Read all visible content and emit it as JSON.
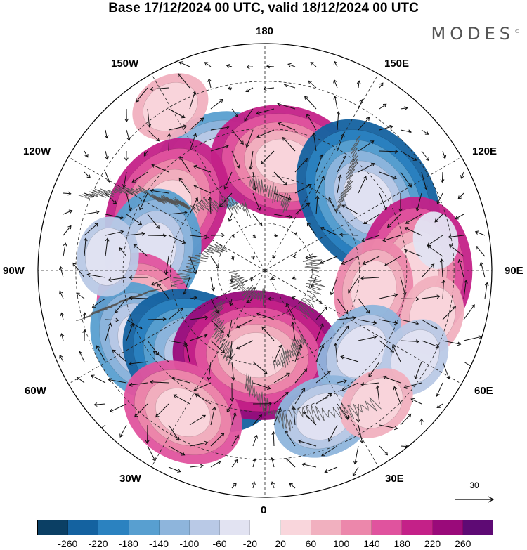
{
  "title": "Base 17/12/2024 00 UTC, valid 18/12/2024 00 UTC",
  "brand": {
    "name": "MODES",
    "mark": "©"
  },
  "lon_labels": {
    "n180": "180",
    "s0": "0",
    "w90": "90W",
    "e90": "90E",
    "w150": "150W",
    "e150": "150E",
    "w120": "120W",
    "e120": "120E",
    "w60": "60W",
    "e60": "60E",
    "w30": "30W",
    "e30": "30E"
  },
  "reference_vector": {
    "value": "30",
    "icon": "arrow-right-icon"
  },
  "colorbar": {
    "ticks": [
      "-260",
      "-220",
      "-180",
      "-140",
      "-100",
      "-60",
      "-20",
      "20",
      "60",
      "100",
      "140",
      "180",
      "220",
      "260"
    ],
    "colors": [
      "#0b3f64",
      "#1462a0",
      "#2b82c0",
      "#589fd0",
      "#8eb5dc",
      "#b9c9e6",
      "#e2e3f2",
      "#ffffff",
      "#f9d6dc",
      "#f1b0bf",
      "#ec87ab",
      "#e0539e",
      "#c42188",
      "#9a0a7a",
      "#5e0a74"
    ]
  },
  "anomaly_centers": [
    {
      "lat": 52,
      "lon": -155,
      "value": -140
    },
    {
      "lat": 55,
      "lon": 170,
      "value": 200
    },
    {
      "lat": 50,
      "lon": 125,
      "value": -220
    },
    {
      "lat": 53,
      "lon": -123,
      "value": 180
    },
    {
      "lat": 54,
      "lon": -100,
      "value": -150
    },
    {
      "lat": 42,
      "lon": 90,
      "value": 180
    },
    {
      "lat": 55,
      "lon": 80,
      "value": 120
    },
    {
      "lat": 50,
      "lon": -70,
      "value": 160
    },
    {
      "lat": 45,
      "lon": -60,
      "value": -160
    },
    {
      "lat": 55,
      "lon": -35,
      "value": -220
    },
    {
      "lat": 63,
      "lon": -5,
      "value": 220
    },
    {
      "lat": 50,
      "lon": 50,
      "value": -130
    },
    {
      "lat": 35,
      "lon": 75,
      "value": 60
    },
    {
      "lat": 35,
      "lon": 60,
      "value": -80
    },
    {
      "lat": 38,
      "lon": -30,
      "value": 140
    },
    {
      "lat": 40,
      "lon": 22,
      "value": -120
    },
    {
      "lat": 35,
      "lon": 40,
      "value": 80
    },
    {
      "lat": 40,
      "lon": -95,
      "value": -60
    },
    {
      "lat": 30,
      "lon": -150,
      "value": 60
    },
    {
      "lat": 35,
      "lon": 100,
      "value": -40
    }
  ]
}
